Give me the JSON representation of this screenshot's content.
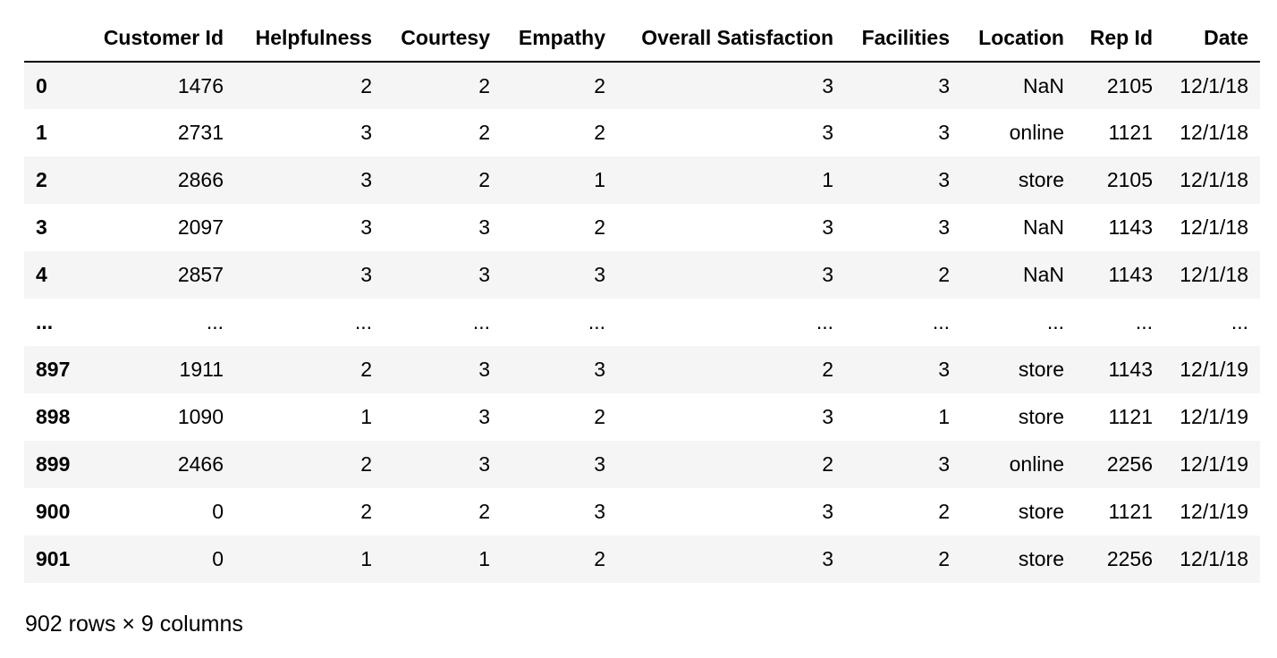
{
  "table": {
    "columns": [
      "Customer Id",
      "Helpfulness",
      "Courtesy",
      "Empathy",
      "Overall Satisfaction",
      "Facilities",
      "Location",
      "Rep Id",
      "Date"
    ],
    "rows": [
      {
        "index": "0",
        "cells": [
          "1476",
          "2",
          "2",
          "2",
          "3",
          "3",
          "NaN",
          "2105",
          "12/1/18"
        ]
      },
      {
        "index": "1",
        "cells": [
          "2731",
          "3",
          "2",
          "2",
          "3",
          "3",
          "online",
          "1121",
          "12/1/18"
        ]
      },
      {
        "index": "2",
        "cells": [
          "2866",
          "3",
          "2",
          "1",
          "1",
          "3",
          "store",
          "2105",
          "12/1/18"
        ]
      },
      {
        "index": "3",
        "cells": [
          "2097",
          "3",
          "3",
          "2",
          "3",
          "3",
          "NaN",
          "1143",
          "12/1/18"
        ]
      },
      {
        "index": "4",
        "cells": [
          "2857",
          "3",
          "3",
          "3",
          "3",
          "2",
          "NaN",
          "1143",
          "12/1/18"
        ]
      },
      {
        "index": "...",
        "cells": [
          "...",
          "...",
          "...",
          "...",
          "...",
          "...",
          "...",
          "...",
          "..."
        ]
      },
      {
        "index": "897",
        "cells": [
          "1911",
          "2",
          "3",
          "3",
          "2",
          "3",
          "store",
          "1143",
          "12/1/19"
        ]
      },
      {
        "index": "898",
        "cells": [
          "1090",
          "1",
          "3",
          "2",
          "3",
          "1",
          "store",
          "1121",
          "12/1/19"
        ]
      },
      {
        "index": "899",
        "cells": [
          "2466",
          "2",
          "3",
          "3",
          "2",
          "3",
          "online",
          "2256",
          "12/1/19"
        ]
      },
      {
        "index": "900",
        "cells": [
          "0",
          "2",
          "2",
          "3",
          "3",
          "2",
          "store",
          "1121",
          "12/1/19"
        ]
      },
      {
        "index": "901",
        "cells": [
          "0",
          "1",
          "1",
          "2",
          "3",
          "2",
          "store",
          "2256",
          "12/1/18"
        ]
      }
    ]
  },
  "caption": "902 rows × 9 columns",
  "colors": {
    "stripe": "#f5f5f5",
    "header_rule": "#000000",
    "text": "#000000",
    "background": "#ffffff"
  }
}
